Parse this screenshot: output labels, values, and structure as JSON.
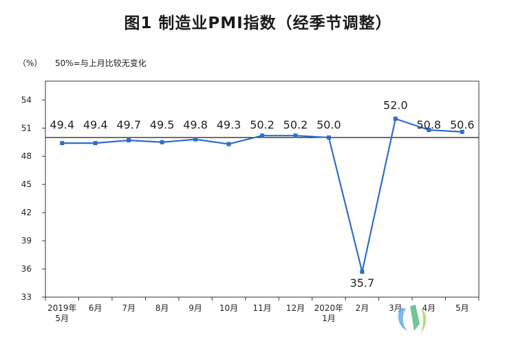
{
  "chart_data": {
    "type": "line",
    "title": "图1  制造业PMI指数（经季节调整）",
    "unit_label": "（%）",
    "note": "50%=与上月比较无变化",
    "categories": [
      [
        "2019年",
        "5月"
      ],
      [
        "6月"
      ],
      [
        "7月"
      ],
      [
        "8月"
      ],
      [
        "9月"
      ],
      [
        "10月"
      ],
      [
        "11月"
      ],
      [
        "12月"
      ],
      [
        "2020年",
        "1月"
      ],
      [
        "2月"
      ],
      [
        "3月"
      ],
      [
        "4月"
      ],
      [
        "5月"
      ]
    ],
    "series": [
      {
        "values": [
          49.4,
          49.4,
          49.7,
          49.5,
          49.8,
          49.3,
          50.2,
          50.2,
          50.0,
          35.7,
          52.0,
          50.8,
          50.6
        ]
      }
    ],
    "value_labels": [
      "49.4",
      "49.4",
      "49.7",
      "49.5",
      "49.8",
      "49.3",
      "50.2",
      "50.2",
      "50.0",
      "35.7",
      "52.0",
      "50.8",
      "50.6"
    ],
    "y_ticks": [
      33,
      36,
      39,
      42,
      45,
      48,
      51,
      54
    ],
    "ylim": [
      33,
      56
    ],
    "reference_line": 50,
    "grid": false,
    "colors": {
      "series": "#2e6dc7",
      "reference": "#000000",
      "axis": "#333333"
    }
  }
}
